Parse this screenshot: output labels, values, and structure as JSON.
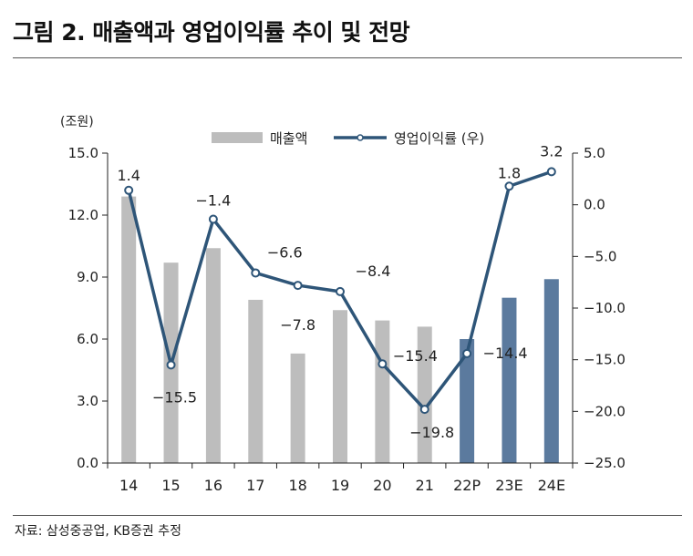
{
  "title": "그림 2. 매출액과 영업이익률 추이 및 전망",
  "unit_label": "(조원)",
  "source": "자료: 삼성중공업, KB증권 추정",
  "colors": {
    "bar_actual": "#bdbdbd",
    "bar_forecast": "#5b7a9e",
    "line": "#2e5578",
    "axis": "#222222"
  },
  "chart_data": {
    "type": "bar+line",
    "categories": [
      "14",
      "15",
      "16",
      "17",
      "18",
      "19",
      "20",
      "21",
      "22P",
      "23E",
      "24E"
    ],
    "forecast_from_index": 8,
    "series": [
      {
        "name": "매출액",
        "type": "bar",
        "axis": "left",
        "values": [
          12.9,
          9.7,
          10.4,
          7.9,
          5.3,
          7.4,
          6.9,
          6.6,
          6.0,
          8.0,
          8.9
        ]
      },
      {
        "name": "영업이익률 (우)",
        "type": "line",
        "axis": "right",
        "values": [
          1.4,
          -15.5,
          -1.4,
          -6.6,
          -7.8,
          -8.4,
          -15.4,
          -19.8,
          -14.4,
          1.8,
          3.2
        ],
        "labels": [
          "1.4",
          "-15.5",
          "-1.4",
          "-6.6",
          "-7.8",
          "-8.4",
          "-15.4",
          "-19.8",
          "-14.4",
          "1.8",
          "3.2"
        ]
      }
    ],
    "y_left": {
      "min": 0,
      "max": 15,
      "ticks": [
        "0.0",
        "3.0",
        "6.0",
        "9.0",
        "12.0",
        "15.0"
      ]
    },
    "y_right": {
      "min": -25,
      "max": 5,
      "ticks": [
        "-25.0",
        "-20.0",
        "-15.0",
        "-10.0",
        "-5.0",
        "0.0",
        "5.0"
      ]
    },
    "legend_position": "top-center",
    "grid": false
  }
}
